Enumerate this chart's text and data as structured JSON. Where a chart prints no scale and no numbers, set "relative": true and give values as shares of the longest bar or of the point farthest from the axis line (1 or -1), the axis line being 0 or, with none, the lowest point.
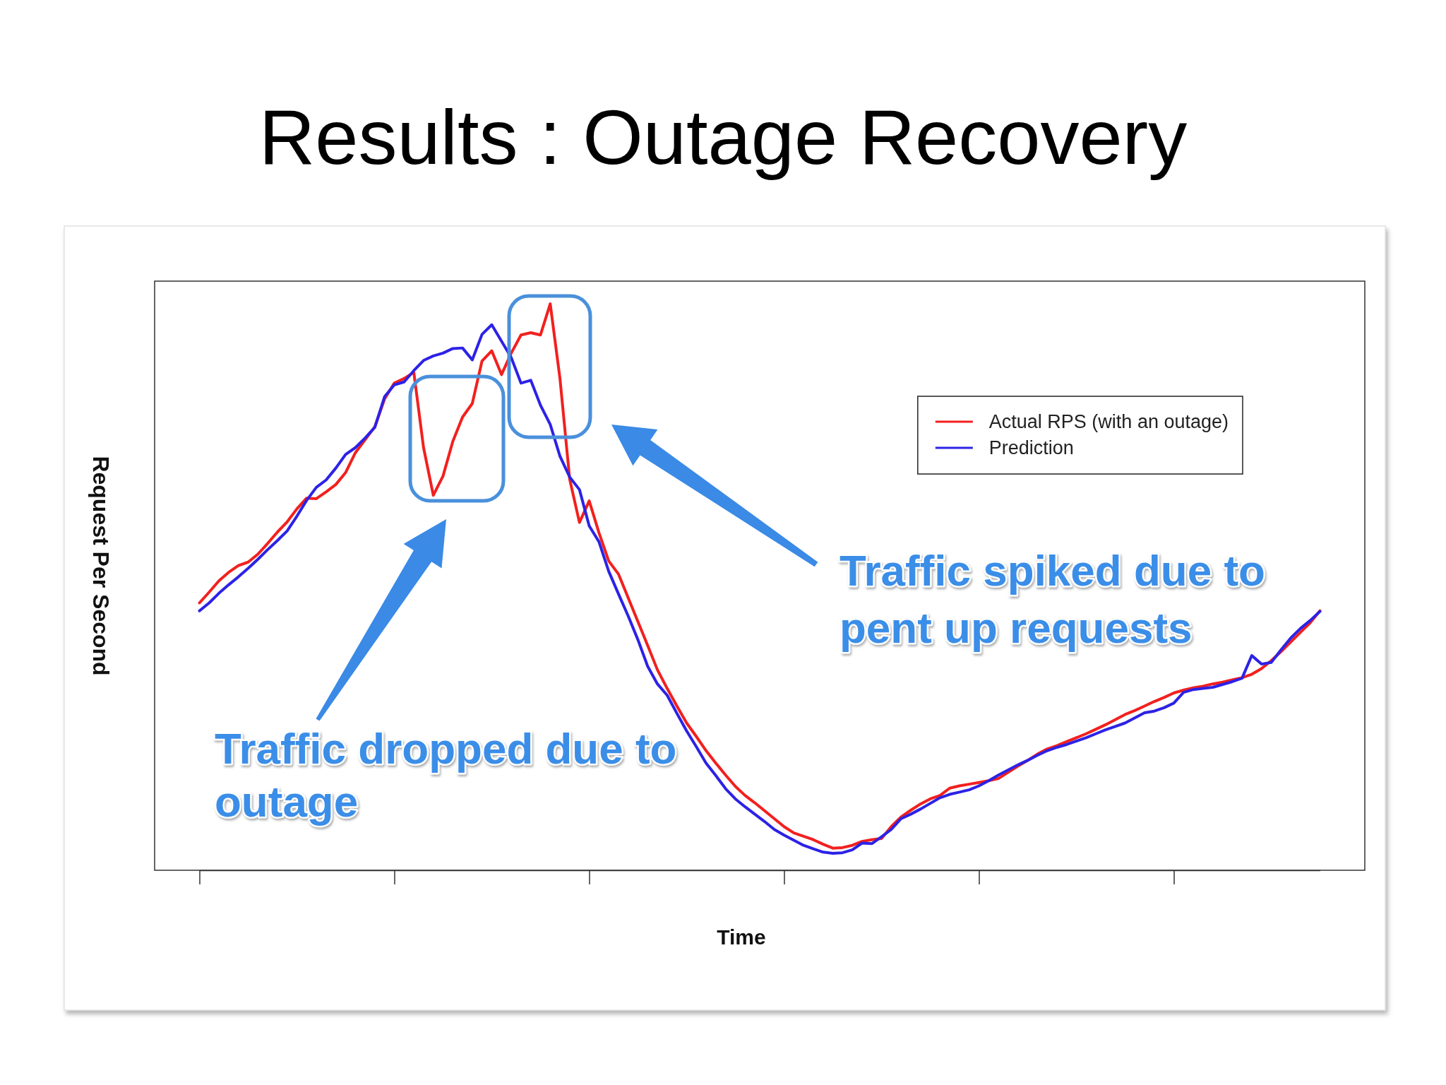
{
  "chart_data": {
    "type": "line",
    "title": "Results : Outage Recovery",
    "xlabel": "Time",
    "ylabel": "Request Per Second",
    "annotations": [
      "Traffic dropped due to outage",
      "Traffic spiked due to pent up requests"
    ],
    "relative": true,
    "legend": "top right",
    "line_style": "solid",
    "categories": [
      null,
      null,
      null,
      null,
      null,
      null,
      null,
      null,
      null,
      null,
      null,
      null,
      null,
      null,
      null,
      null,
      null,
      null,
      null,
      null,
      null,
      null,
      null,
      null,
      null,
      null,
      null,
      null,
      null,
      null,
      null,
      null,
      null,
      null,
      null,
      null,
      null,
      null,
      null,
      null,
      null,
      null,
      null,
      null,
      null,
      null,
      null,
      null,
      null,
      null,
      null,
      null,
      null,
      null,
      null,
      null,
      null,
      null,
      null,
      null,
      null,
      null,
      null,
      null,
      null,
      null,
      null,
      null,
      null,
      null,
      null,
      null,
      null,
      null,
      null,
      null,
      null,
      null,
      null,
      null,
      null,
      null,
      null,
      null,
      null,
      null,
      null,
      null,
      null,
      null,
      null,
      null,
      null,
      null,
      null,
      null,
      null,
      null,
      null,
      null,
      null,
      null,
      null,
      null,
      null,
      null,
      null,
      null,
      null,
      null,
      null,
      null,
      null,
      null,
      null,
      null
    ],
    "series": [
      {
        "name": "Actual RPS (with an outage)",
        "color": "#f2201e",
        "values": [
          0.472,
          0.491,
          0.511,
          0.526,
          0.538,
          0.544,
          0.558,
          0.577,
          0.597,
          0.615,
          0.638,
          0.657,
          0.656,
          0.668,
          0.681,
          0.702,
          0.737,
          0.76,
          0.783,
          0.832,
          0.86,
          0.868,
          0.879,
          0.746,
          0.662,
          0.696,
          0.757,
          0.8,
          0.824,
          0.899,
          0.917,
          0.875,
          0.913,
          0.945,
          0.949,
          0.945,
          1,
          0.868,
          0.69,
          0.614,
          0.652,
          0.596,
          0.546,
          0.523,
          0.481,
          0.439,
          0.397,
          0.354,
          0.321,
          0.29,
          0.26,
          0.236,
          0.211,
          0.189,
          0.168,
          0.148,
          0.132,
          0.119,
          0.105,
          0.091,
          0.077,
          0.066,
          0.06,
          0.054,
          0.046,
          0.039,
          0.04,
          0.044,
          0.051,
          0.054,
          0.056,
          0.077,
          0.094,
          0.106,
          0.117,
          0.126,
          0.132,
          0.145,
          0.149,
          0.152,
          0.155,
          0.158,
          0.162,
          0.173,
          0.184,
          0.194,
          0.205,
          0.214,
          0.22,
          0.227,
          0.234,
          0.241,
          0.249,
          0.257,
          0.266,
          0.275,
          0.282,
          0.29,
          0.298,
          0.305,
          0.313,
          0.318,
          0.322,
          0.325,
          0.329,
          0.332,
          0.336,
          0.34,
          0.346,
          0.356,
          0.37,
          0.386,
          0.403,
          0.42,
          0.437,
          0.458
        ]
      },
      {
        "name": "Prediction",
        "color": "#2c22e6",
        "values": [
          0.458,
          0.472,
          0.489,
          0.504,
          0.518,
          0.533,
          0.549,
          0.566,
          0.582,
          0.599,
          0.625,
          0.653,
          0.676,
          0.689,
          0.71,
          0.734,
          0.746,
          0.763,
          0.782,
          0.836,
          0.857,
          0.862,
          0.882,
          0.9,
          0.908,
          0.913,
          0.921,
          0.922,
          0.901,
          0.946,
          0.963,
          0.934,
          0.905,
          0.86,
          0.865,
          0.821,
          0.787,
          0.731,
          0.694,
          0.672,
          0.608,
          0.58,
          0.528,
          0.488,
          0.449,
          0.407,
          0.36,
          0.329,
          0.309,
          0.277,
          0.246,
          0.218,
          0.189,
          0.167,
          0.144,
          0.126,
          0.112,
          0.099,
          0.086,
          0.072,
          0.062,
          0.053,
          0.044,
          0.038,
          0.032,
          0.03,
          0.031,
          0.036,
          0.048,
          0.047,
          0.059,
          0.072,
          0.091,
          0.099,
          0.108,
          0.118,
          0.128,
          0.134,
          0.138,
          0.142,
          0.149,
          0.158,
          0.168,
          0.177,
          0.186,
          0.194,
          0.203,
          0.211,
          0.217,
          0.222,
          0.228,
          0.234,
          0.241,
          0.248,
          0.254,
          0.26,
          0.269,
          0.278,
          0.281,
          0.287,
          0.295,
          0.314,
          0.319,
          0.321,
          0.323,
          0.328,
          0.333,
          0.339,
          0.379,
          0.364,
          0.367,
          0.389,
          0.41,
          0.427,
          0.441,
          0.457
        ]
      }
    ]
  }
}
